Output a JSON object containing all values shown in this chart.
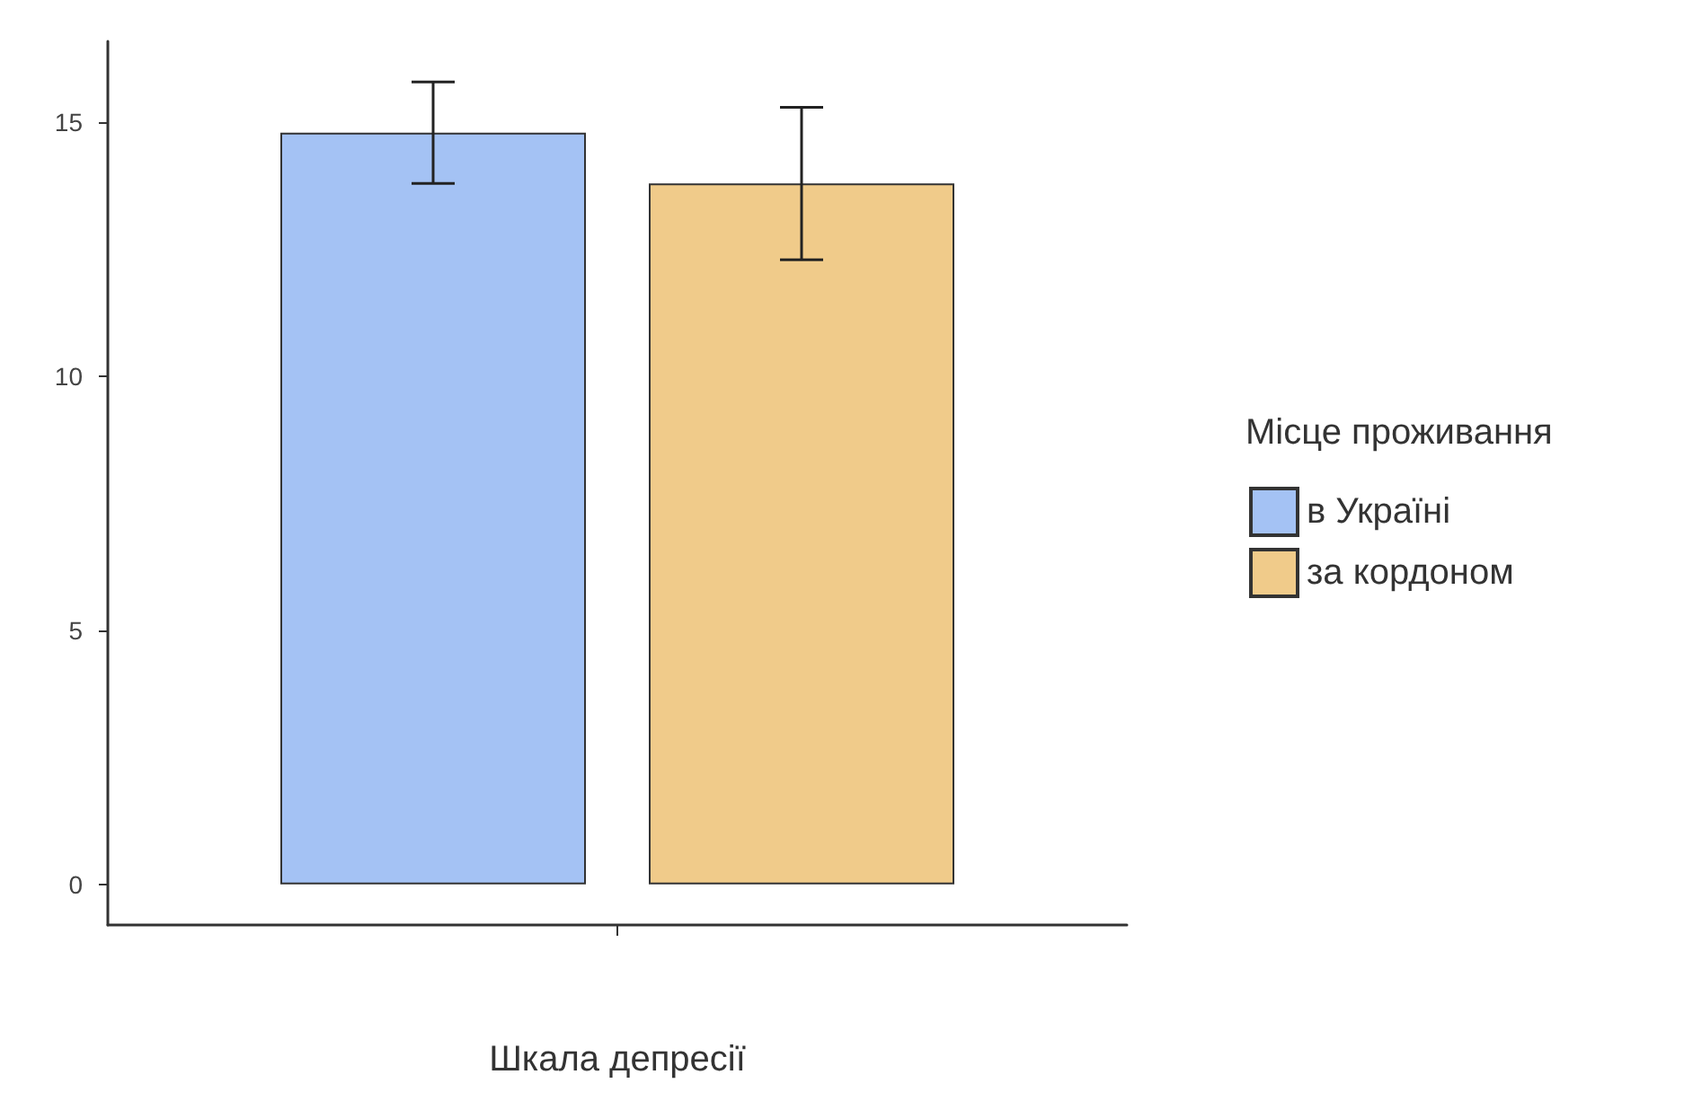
{
  "chart_data": {
    "type": "bar",
    "xlabel": "Шкала депресії",
    "legend_title": "Місце проживання",
    "categories": [
      null
    ],
    "series": [
      {
        "name": "в Україні",
        "color": "#a4c2f4",
        "values": [
          14.8
        ],
        "errors": [
          1.0
        ]
      },
      {
        "name": "за кордоном",
        "color": "#f0cb8a",
        "values": [
          13.8
        ],
        "errors": [
          1.5
        ]
      }
    ],
    "ylim": [
      -0.8,
      16.6
    ],
    "yticks": [
      0,
      5,
      10,
      15
    ],
    "grid": false,
    "legend": "right"
  }
}
